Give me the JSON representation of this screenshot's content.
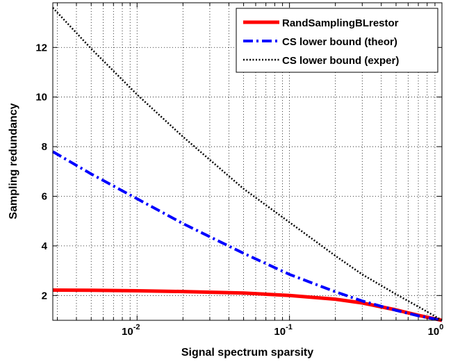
{
  "chart_data": {
    "type": "line",
    "title": "",
    "xlabel": "Signal spectrum sparsity",
    "ylabel": "Sampling redundancy",
    "xscale": "log",
    "xlim": [
      0.0028,
      1
    ],
    "ylim": [
      1,
      13.8
    ],
    "grid": true,
    "legend_position": "top-right",
    "x_ticks": [
      {
        "value": 0.01,
        "base": "10",
        "exp": "-2"
      },
      {
        "value": 0.1,
        "base": "10",
        "exp": "-1"
      },
      {
        "value": 1,
        "base": "10",
        "exp": "0"
      }
    ],
    "y_ticks": [
      {
        "value": 2,
        "label": "2"
      },
      {
        "value": 4,
        "label": "4"
      },
      {
        "value": 6,
        "label": "6"
      },
      {
        "value": 8,
        "label": "8"
      },
      {
        "value": 10,
        "label": "10"
      },
      {
        "value": 12,
        "label": "12"
      }
    ],
    "series": [
      {
        "name": "RandSamplingBLrestor",
        "color": "#ff0000",
        "style": "solid",
        "x": [
          0.0028,
          0.005,
          0.01,
          0.02,
          0.05,
          0.1,
          0.2,
          0.3,
          0.5,
          0.7,
          1.0
        ],
        "y": [
          2.22,
          2.21,
          2.19,
          2.16,
          2.1,
          2.0,
          1.85,
          1.7,
          1.42,
          1.2,
          1.0
        ]
      },
      {
        "name": "CS lower bound (theor)",
        "color": "#0000ff",
        "style": "dashdot",
        "x": [
          0.0028,
          0.005,
          0.01,
          0.02,
          0.05,
          0.1,
          0.2,
          0.3,
          0.5,
          0.7,
          1.0
        ],
        "y": [
          7.8,
          6.9,
          5.9,
          4.9,
          3.7,
          2.85,
          2.15,
          1.78,
          1.4,
          1.18,
          1.0
        ]
      },
      {
        "name": "CS lower bound (exper)",
        "color": "#000000",
        "style": "dotted",
        "x": [
          0.0028,
          0.005,
          0.01,
          0.02,
          0.05,
          0.1,
          0.2,
          0.3,
          0.5,
          0.7,
          1.0
        ],
        "y": [
          13.6,
          11.95,
          10.1,
          8.4,
          6.3,
          4.95,
          3.6,
          2.85,
          2.05,
          1.55,
          1.0
        ]
      }
    ]
  }
}
